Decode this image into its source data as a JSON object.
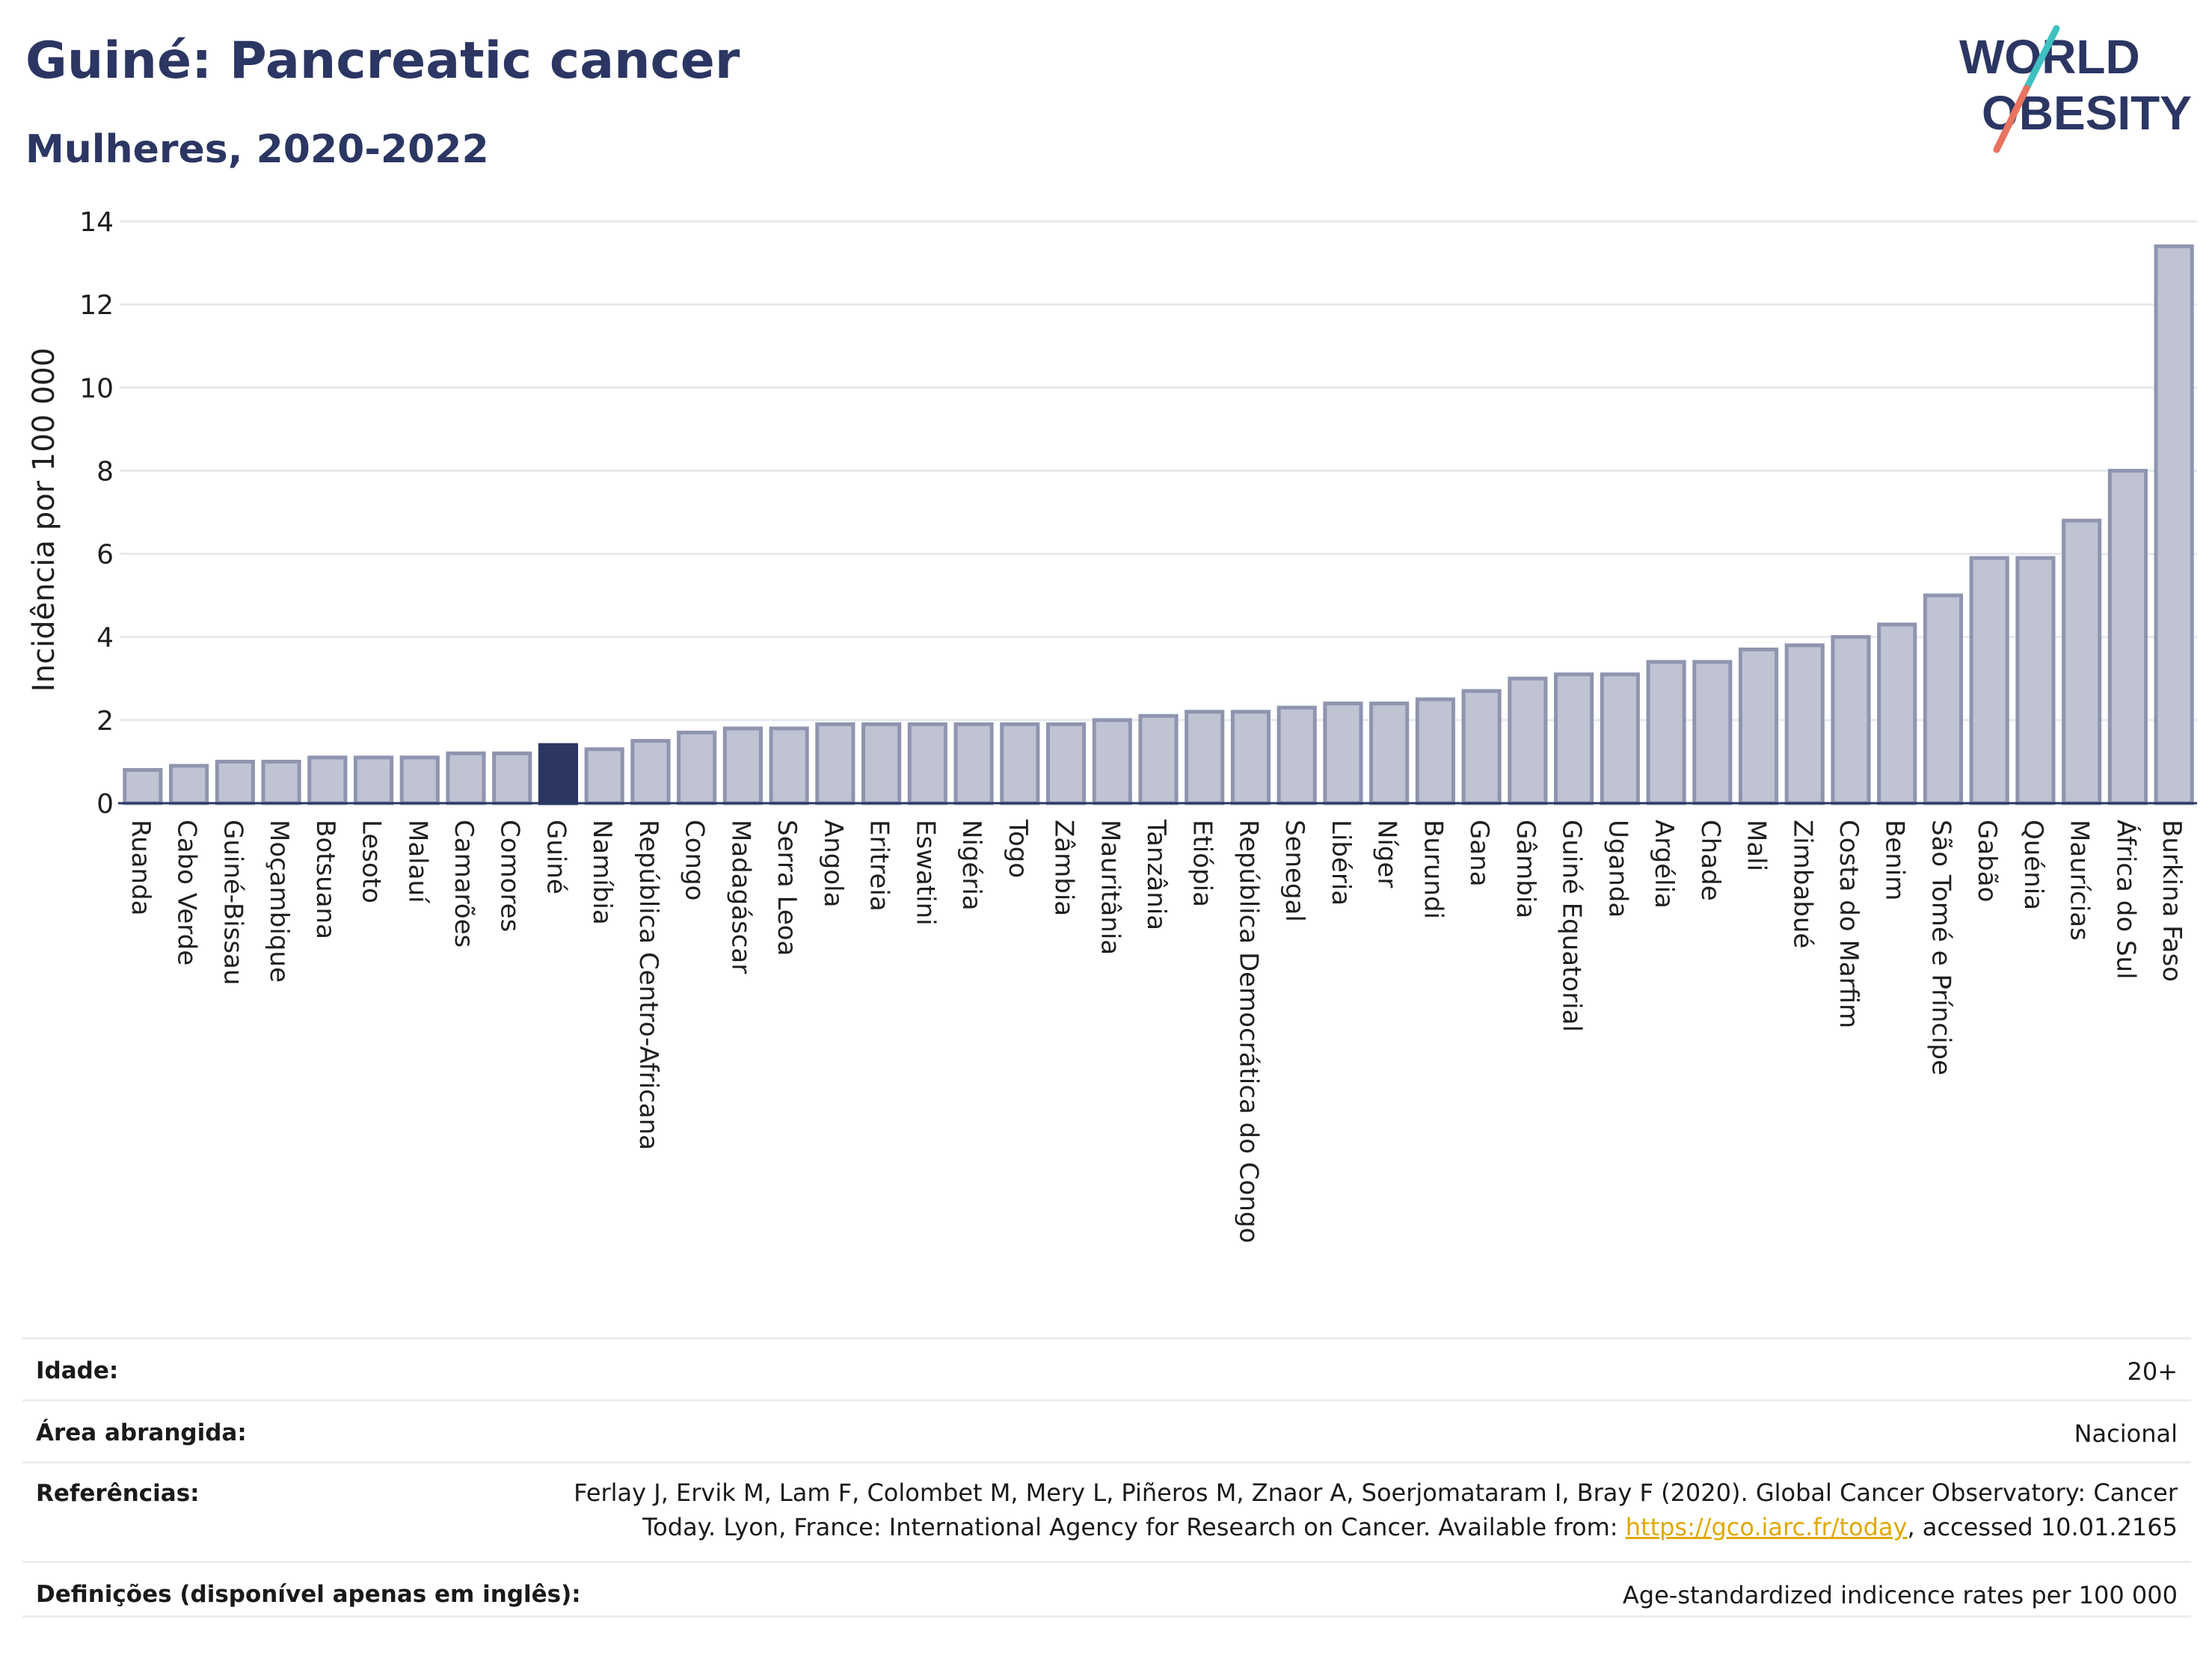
{
  "title": "Guiné: Pancreatic cancer",
  "subtitle": "Mulheres, 2020-2022",
  "logo": {
    "line1": "WORLD",
    "line2": "OBESITY"
  },
  "colors": {
    "title": "#2b3663",
    "bar": "#bfc3d2",
    "bar_stroke": "#8f95b0",
    "highlight": "#2b3663",
    "link": "#e0a800",
    "slash_teal": "#3fc1c0",
    "slash_coral": "#e8735f"
  },
  "chart_data": {
    "type": "bar",
    "ylabel": "Incidência por 100 000",
    "ylim": [
      0,
      14
    ],
    "yticks": [
      0,
      2,
      4,
      6,
      8,
      10,
      12,
      14
    ],
    "grid": true,
    "highlight": "Guiné",
    "categories": [
      "Ruanda",
      "Cabo Verde",
      "Guiné-Bissau",
      "Moçambique",
      "Botsuana",
      "Lesoto",
      "Malauí",
      "Camarões",
      "Comores",
      "Guiné",
      "Namíbia",
      "República Centro-Africana",
      "Congo",
      "Madagáscar",
      "Serra Leoa",
      "Angola",
      "Eritreia",
      "Eswatini",
      "Nigéria",
      "Togo",
      "Zâmbia",
      "Mauritânia",
      "Tanzânia",
      "Etiópia",
      "República Democrática do Congo",
      "Senegal",
      "Libéria",
      "Níger",
      "Burundi",
      "Gana",
      "Gâmbia",
      "Guiné Equatorial",
      "Uganda",
      "Argélia",
      "Chade",
      "Mali",
      "Zimbabué",
      "Costa do Marfim",
      "Benim",
      "São Tomé e Príncipe",
      "Gabão",
      "Quénia",
      "Maurícias",
      "África do Sul",
      "Burkina Faso"
    ],
    "values": [
      0.8,
      0.9,
      1.0,
      1.0,
      1.1,
      1.1,
      1.1,
      1.2,
      1.2,
      1.4,
      1.3,
      1.5,
      1.7,
      1.8,
      1.8,
      1.9,
      1.9,
      1.9,
      1.9,
      1.9,
      1.9,
      2.0,
      2.1,
      2.2,
      2.2,
      2.3,
      2.4,
      2.4,
      2.5,
      2.7,
      3.0,
      3.1,
      3.1,
      3.4,
      3.4,
      3.7,
      3.8,
      4.0,
      4.3,
      5.0,
      5.9,
      5.9,
      6.8,
      8.0,
      13.4
    ]
  },
  "info": {
    "age_label": "Idade:",
    "age_value": "20+",
    "area_label": "Área abrangida:",
    "area_value": "Nacional",
    "ref_label": "Referências:",
    "ref_line1": "Ferlay J, Ervik M, Lam F, Colombet M, Mery L, Piñeros M, Znaor A, Soerjomataram I, Bray F (2020). Global Cancer Observatory: Cancer",
    "ref_line2_pre": "Today. Lyon, France: International Agency for Research on Cancer. Available from: ",
    "ref_link": "https://gco.iarc.fr/today",
    "ref_line2_post": ", accessed 10.01.2165",
    "def_label": "Definições (disponível apenas em inglês):",
    "def_value": "Age-standardized indicence rates per 100 000"
  }
}
